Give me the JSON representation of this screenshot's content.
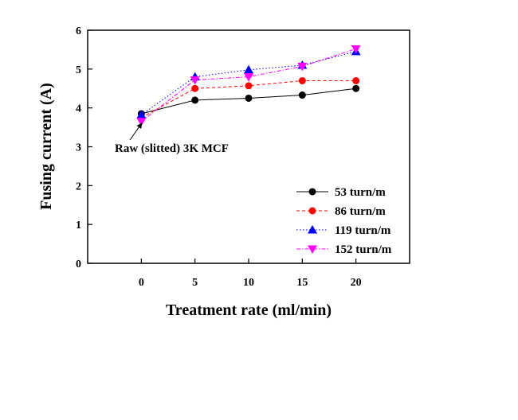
{
  "chart_data": {
    "type": "line",
    "title": "",
    "xlabel": "Treatment rate (ml/min)",
    "ylabel": "Fusing current (A)",
    "xlim": [
      -5,
      25
    ],
    "ylim": [
      0,
      6
    ],
    "xticks": [
      "0",
      "5",
      "10",
      "15",
      "20"
    ],
    "yticks": [
      "0",
      "1",
      "2",
      "3",
      "4",
      "5",
      "6"
    ],
    "x": [
      0,
      5,
      10,
      15,
      20
    ],
    "grid": false,
    "legend_position": "bottom-right",
    "series": [
      {
        "name": "53 turn/m",
        "values": [
          3.85,
          4.2,
          4.25,
          4.33,
          4.5
        ],
        "color": "#000000",
        "marker": "circle",
        "line": "solid"
      },
      {
        "name": "86 turn/m",
        "values": [
          3.75,
          4.5,
          4.57,
          4.7,
          4.7
        ],
        "color": "#ff0000",
        "marker": "circle",
        "line": "dash"
      },
      {
        "name": "119 turn/m",
        "values": [
          3.82,
          4.8,
          4.98,
          5.1,
          5.45
        ],
        "color": "#0000ff",
        "marker": "triangle-up",
        "line": "dot"
      },
      {
        "name": "152 turn/m",
        "values": [
          3.65,
          4.72,
          4.8,
          5.07,
          5.52
        ],
        "color": "#ff00ff",
        "marker": "triangle-down",
        "line": "dashdot"
      }
    ],
    "annotation": {
      "text": "Raw (slitted) 3K MCF",
      "x": 0,
      "y": 3.7
    }
  }
}
